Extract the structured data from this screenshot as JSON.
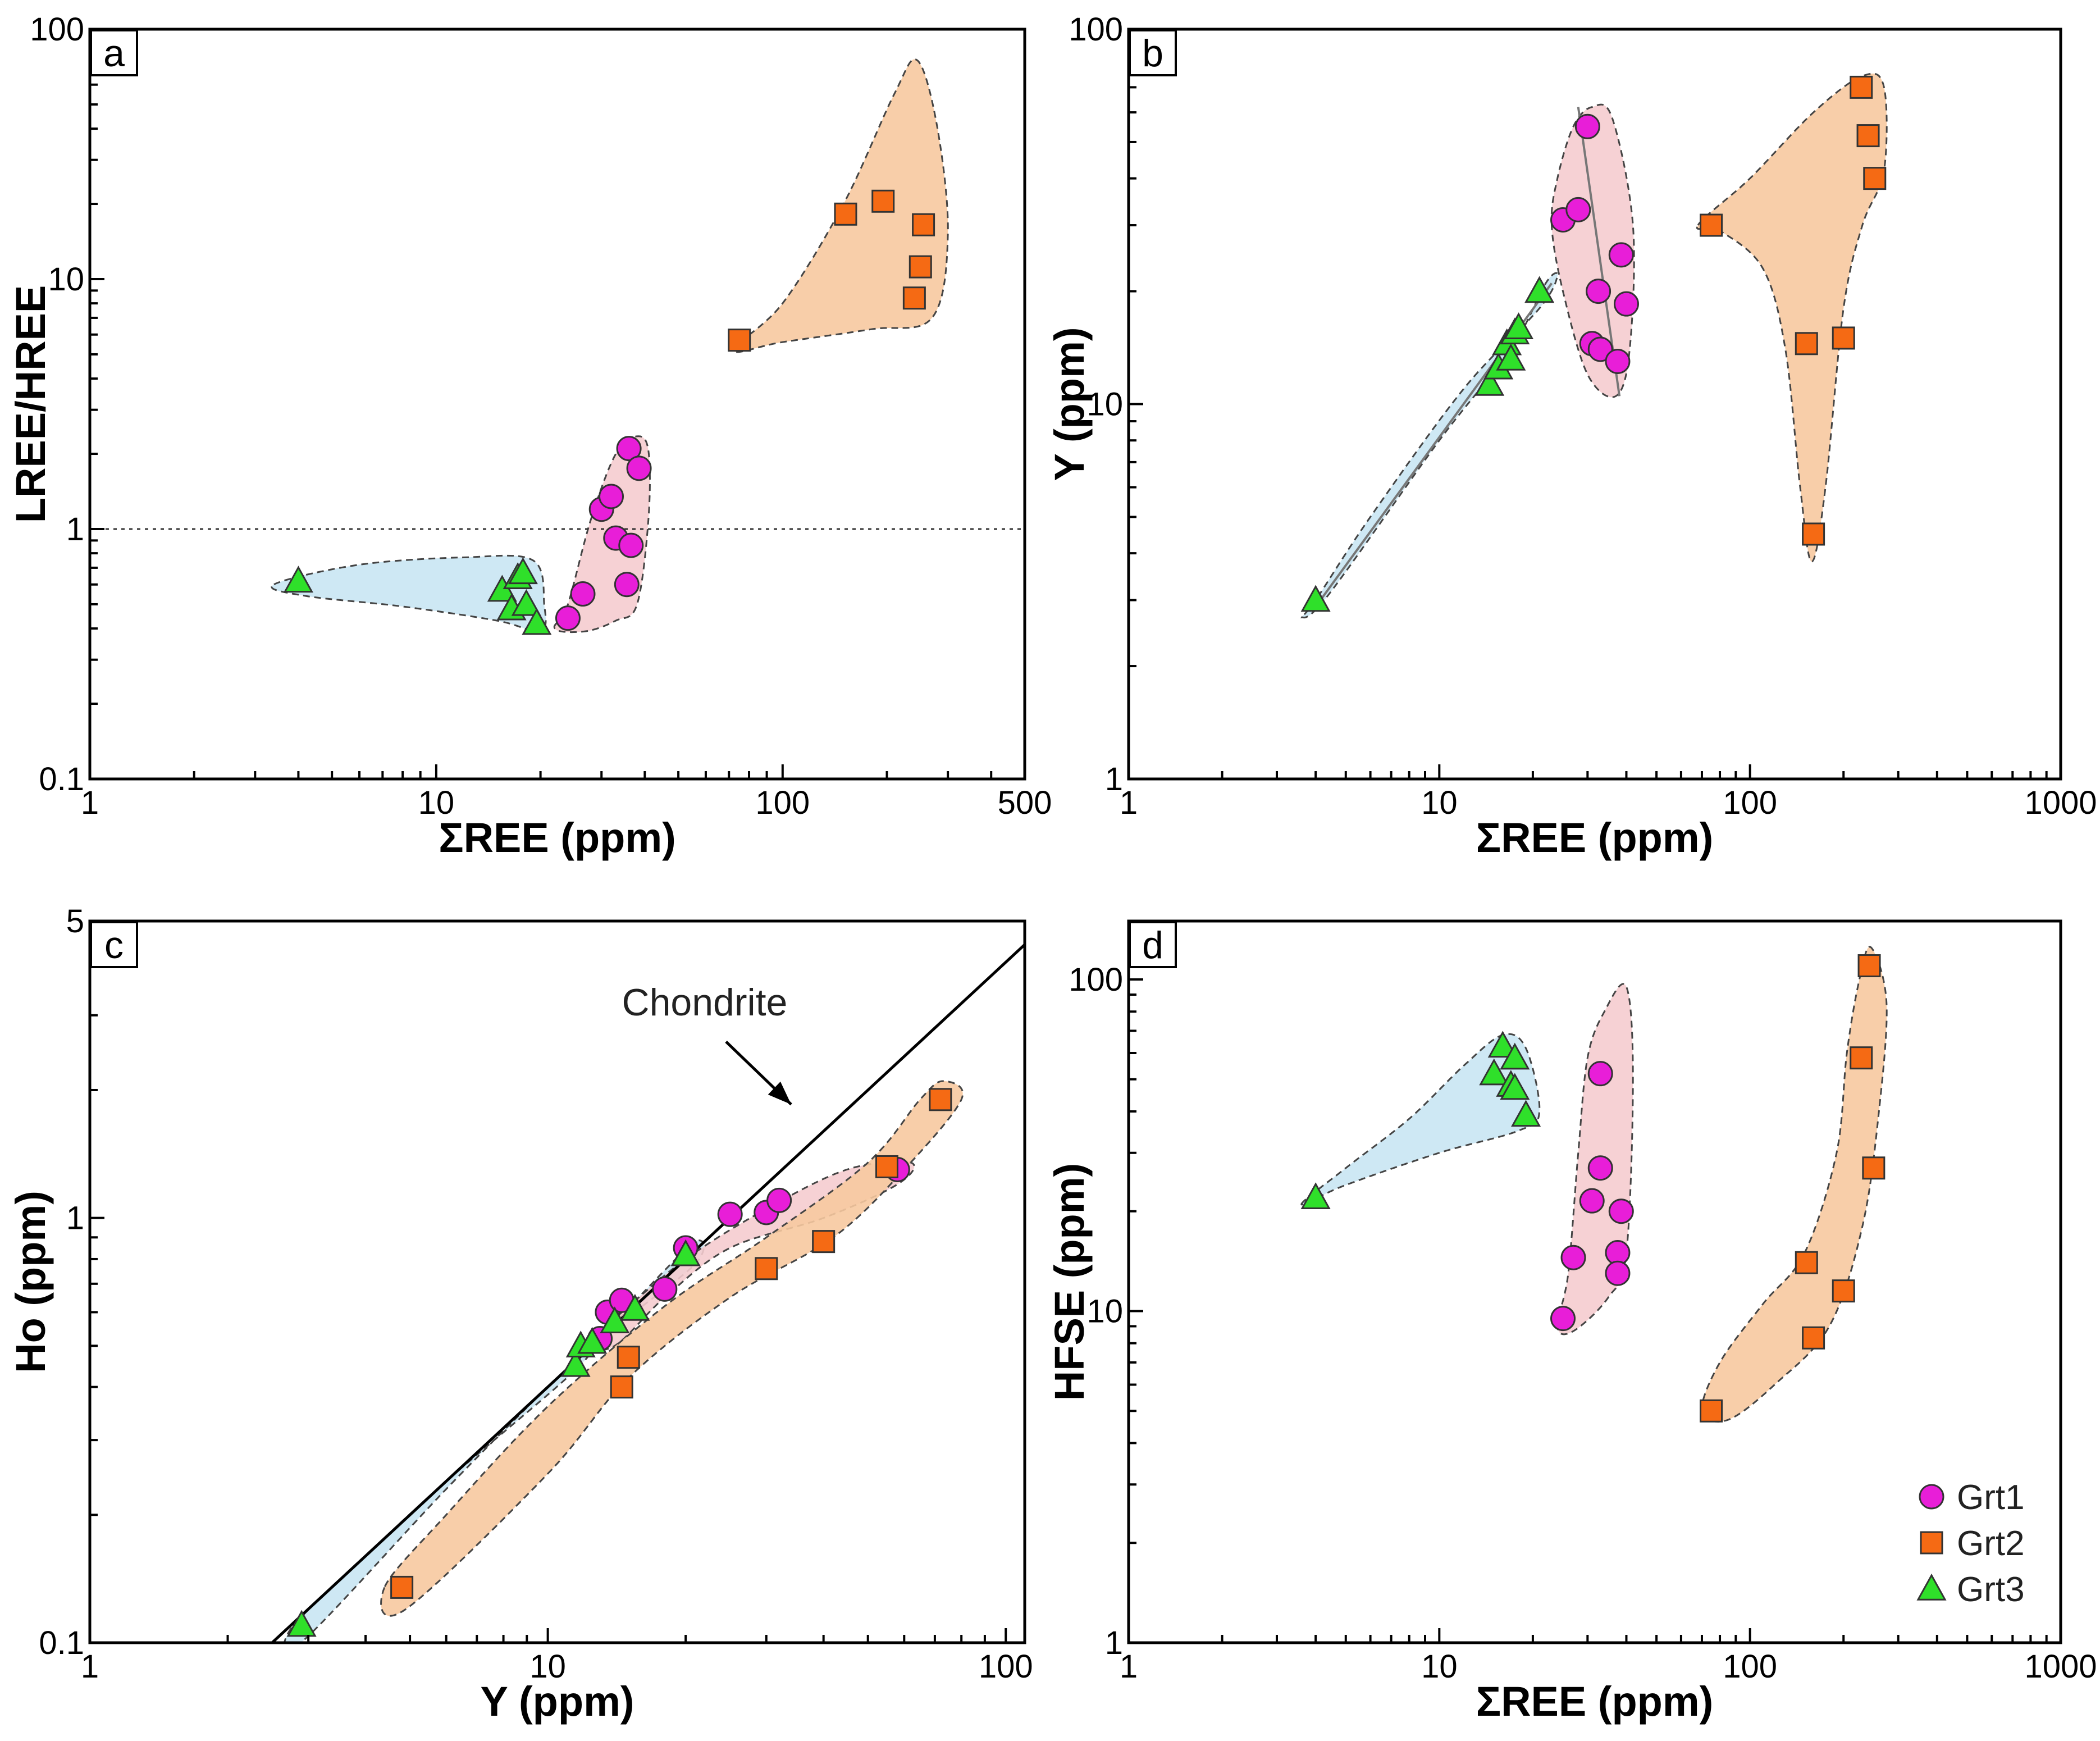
{
  "colors": {
    "Grt1": "#e81ed8",
    "Grt2": "#f56a14",
    "Grt3": "#2fe02a",
    "field_Grt1": "#f5cccf",
    "field_Grt2": "#f7c9a0",
    "field_Grt3": "#c9e6f3"
  },
  "legend": [
    {
      "label": "Grt1",
      "marker": "circle"
    },
    {
      "label": "Grt2",
      "marker": "square"
    },
    {
      "label": "Grt3",
      "marker": "triangle"
    }
  ],
  "chart_data": [
    {
      "panel": "a",
      "type": "scatter",
      "xlabel": "ΣREE (ppm)",
      "ylabel": "LREE/HREE",
      "xscale": "log",
      "yscale": "log",
      "xlim": [
        1,
        500
      ],
      "ylim": [
        0.1,
        100
      ],
      "xticks": [
        1,
        10,
        100,
        500
      ],
      "xtick_labels": [
        "1",
        "10",
        "100",
        "500"
      ],
      "yticks": [
        0.1,
        1,
        10,
        100
      ],
      "ytick_labels": [
        "0.1",
        "1",
        "10",
        "100"
      ],
      "reference_line": {
        "y": 1,
        "style": "dotted"
      },
      "series": [
        {
          "name": "Grt1",
          "x": [
            24,
            26.5,
            30,
            32,
            33,
            35.5,
            36,
            36.5,
            38.5
          ],
          "y": [
            0.44,
            0.55,
            1.2,
            1.35,
            0.92,
            0.6,
            2.1,
            0.86,
            1.75
          ]
        },
        {
          "name": "Grt2",
          "x": [
            75,
            152,
            195,
            240,
            250,
            255
          ],
          "y": [
            5.7,
            18.2,
            20.5,
            8.4,
            11.2,
            16.5
          ]
        },
        {
          "name": "Grt3",
          "x": [
            4,
            15.5,
            16.5,
            17.2,
            17.8,
            18.2,
            19.5
          ],
          "y": [
            0.62,
            0.57,
            0.48,
            0.64,
            0.67,
            0.5,
            0.42
          ]
        }
      ],
      "fields": [
        {
          "group": "Grt3",
          "outline": [
            [
              3.4,
              0.6
            ],
            [
              6,
              0.72
            ],
            [
              12,
              0.77
            ],
            [
              19,
              0.75
            ],
            [
              20.5,
              0.5
            ],
            [
              20,
              0.39
            ],
            [
              15,
              0.43
            ],
            [
              8,
              0.49
            ],
            [
              4.2,
              0.54
            ]
          ]
        },
        {
          "group": "Grt1",
          "outline": [
            [
              22,
              0.4
            ],
            [
              24,
              0.5
            ],
            [
              28,
              1.1
            ],
            [
              33,
              2
            ],
            [
              38,
              2.35
            ],
            [
              41,
              2.05
            ],
            [
              41,
              1.1
            ],
            [
              38,
              0.5
            ],
            [
              33,
              0.43
            ],
            [
              27,
              0.39
            ]
          ]
        },
        {
          "group": "Grt2",
          "outline": [
            [
              72,
              5.2
            ],
            [
              100,
              8
            ],
            [
              150,
              20
            ],
            [
              210,
              55
            ],
            [
              245,
              75
            ],
            [
              280,
              40
            ],
            [
              300,
              15
            ],
            [
              270,
              7
            ],
            [
              180,
              6.3
            ],
            [
              100,
              5.6
            ]
          ]
        }
      ]
    },
    {
      "panel": "b",
      "type": "scatter",
      "xlabel": "ΣREE (ppm)",
      "ylabel": "Y (ppm)",
      "xscale": "log",
      "yscale": "log",
      "xlim": [
        1,
        1000
      ],
      "ylim": [
        1,
        100
      ],
      "xticks": [
        1,
        10,
        100,
        1000
      ],
      "xtick_labels": [
        "1",
        "10",
        "100",
        "1000"
      ],
      "yticks": [
        1,
        10,
        100
      ],
      "ytick_labels": [
        "1",
        "10",
        "100"
      ],
      "trend_lines": [
        {
          "group": "Grt3",
          "x": [
            3.9,
            23
          ],
          "y": [
            2.8,
            21
          ]
        },
        {
          "group": "Grt1",
          "x": [
            28,
            38
          ],
          "y": [
            62,
            10.5
          ]
        }
      ],
      "series": [
        {
          "name": "Grt1",
          "x": [
            30,
            25,
            28,
            32.5,
            38.5,
            31,
            33,
            37.5,
            40
          ],
          "y": [
            55,
            31,
            33,
            20,
            25,
            14.5,
            14,
            13,
            18.5
          ]
        },
        {
          "name": "Grt2",
          "x": [
            228,
            240,
            252,
            75,
            152,
            200,
            160
          ],
          "y": [
            70,
            52,
            40,
            30,
            14.5,
            15,
            4.5
          ]
        },
        {
          "name": "Grt3",
          "x": [
            4,
            14.5,
            15.5,
            16.5,
            17,
            17.5,
            18,
            21
          ],
          "y": [
            3,
            11.3,
            12.5,
            14.5,
            13.2,
            15.5,
            16,
            20
          ]
        }
      ],
      "fields": [
        {
          "group": "Grt3",
          "outline": [
            [
              3.6,
              2.7
            ],
            [
              4.4,
              3.1
            ],
            [
              10,
              8
            ],
            [
              17,
              14
            ],
            [
              22,
              21
            ],
            [
              24,
              22
            ],
            [
              21,
              18
            ],
            [
              12,
              11
            ],
            [
              6,
              5
            ],
            [
              4,
              3
            ]
          ]
        },
        {
          "group": "Grt1",
          "outline": [
            [
              23,
              30
            ],
            [
              24,
              40
            ],
            [
              27,
              55
            ],
            [
              31,
              62
            ],
            [
              36,
              58
            ],
            [
              42,
              30
            ],
            [
              41,
              14
            ],
            [
              37,
              10.5
            ],
            [
              30,
              12
            ],
            [
              25,
              20
            ]
          ]
        },
        {
          "group": "Grt2",
          "outline": [
            [
              68,
              30
            ],
            [
              100,
              40
            ],
            [
              160,
              60
            ],
            [
              230,
              75
            ],
            [
              270,
              70
            ],
            [
              270,
              42
            ],
            [
              230,
              30
            ],
            [
              200,
              18
            ],
            [
              175,
              6
            ],
            [
              158,
              3.8
            ],
            [
              145,
              6
            ],
            [
              130,
              14
            ],
            [
              110,
              23
            ],
            [
              80,
              29
            ]
          ]
        }
      ]
    },
    {
      "panel": "c",
      "type": "scatter",
      "xlabel": "Y (ppm)",
      "ylabel": "Ho (ppm)",
      "xscale": "log",
      "yscale": "log",
      "xlim": [
        1,
        110
      ],
      "ylim": [
        0.1,
        5
      ],
      "xticks": [
        1,
        10,
        100
      ],
      "xtick_labels": [
        "1",
        "10",
        "100"
      ],
      "yticks": [
        0.1,
        1,
        5
      ],
      "ytick_labels": [
        "0.1",
        "1",
        "5"
      ],
      "reference_line": {
        "label": "Chondrite",
        "x": [
          2.5,
          110
        ],
        "y": [
          0.1,
          4.4
        ]
      },
      "annotation": "Chondrite",
      "series": [
        {
          "name": "Grt1",
          "x": [
            13,
            13.5,
            14.5,
            18,
            20,
            25,
            30,
            32,
            58
          ],
          "y": [
            0.52,
            0.6,
            0.64,
            0.68,
            0.85,
            1.02,
            1.03,
            1.1,
            1.3
          ]
        },
        {
          "name": "Grt2",
          "x": [
            4.8,
            14.5,
            15,
            30,
            40,
            55,
            72
          ],
          "y": [
            0.135,
            0.4,
            0.47,
            0.76,
            0.88,
            1.32,
            1.9
          ]
        },
        {
          "name": "Grt3",
          "x": [
            2.9,
            11.5,
            11.8,
            12.5,
            14,
            15.5,
            20
          ],
          "y": [
            0.11,
            0.45,
            0.5,
            0.51,
            0.57,
            0.61,
            0.82
          ]
        }
      ],
      "fields": [
        {
          "group": "Grt3",
          "outline": [
            [
              2.75,
              0.108
            ],
            [
              2.95,
              0.102
            ],
            [
              6,
              0.23
            ],
            [
              10,
              0.4
            ],
            [
              13,
              0.52
            ],
            [
              16,
              0.66
            ],
            [
              21,
              0.88
            ],
            [
              21,
              0.78
            ],
            [
              14,
              0.55
            ],
            [
              11,
              0.42
            ],
            [
              6,
              0.24
            ],
            [
              4,
              0.16
            ]
          ]
        },
        {
          "group": "Grt1",
          "outline": [
            [
              12,
              0.5
            ],
            [
              14,
              0.58
            ],
            [
              20,
              0.8
            ],
            [
              30,
              1.05
            ],
            [
              45,
              1.3
            ],
            [
              62,
              1.35
            ],
            [
              58,
              1.2
            ],
            [
              40,
              1.0
            ],
            [
              25,
              0.85
            ],
            [
              18,
              0.65
            ],
            [
              14,
              0.5
            ]
          ]
        },
        {
          "group": "Grt2",
          "outline": [
            [
              4.4,
              0.135
            ],
            [
              4.9,
              0.12
            ],
            [
              10,
              0.25
            ],
            [
              15,
              0.42
            ],
            [
              25,
              0.65
            ],
            [
              42,
              0.9
            ],
            [
              60,
              1.3
            ],
            [
              80,
              1.9
            ],
            [
              73,
              2.1
            ],
            [
              65,
              1.9
            ],
            [
              50,
              1.35
            ],
            [
              30,
              0.9
            ],
            [
              18,
              0.62
            ],
            [
              10,
              0.36
            ],
            [
              6,
              0.2
            ]
          ]
        }
      ]
    },
    {
      "panel": "d",
      "type": "scatter",
      "xlabel": "ΣREE (ppm)",
      "ylabel": "HFSE (ppm)",
      "xscale": "log",
      "yscale": "log",
      "xlim": [
        1,
        1000
      ],
      "ylim": [
        1,
        150
      ],
      "xticks": [
        1,
        10,
        100,
        1000
      ],
      "xtick_labels": [
        "1",
        "10",
        "100",
        "1000"
      ],
      "yticks": [
        1,
        10,
        100
      ],
      "ytick_labels": [
        "1",
        "10",
        "100"
      ],
      "series": [
        {
          "name": "Grt1",
          "x": [
            33,
            33,
            31,
            38.5,
            27,
            37.5,
            37.5,
            25
          ],
          "y": [
            52,
            27,
            21.5,
            20,
            14.5,
            15,
            13,
            9.5
          ]
        },
        {
          "name": "Grt2",
          "x": [
            242,
            228,
            250,
            152,
            200,
            160,
            75
          ],
          "y": [
            110,
            58,
            27,
            14,
            11.5,
            8.3,
            5
          ]
        },
        {
          "name": "Grt3",
          "x": [
            4,
            15,
            16,
            17,
            17.5,
            17.5,
            19
          ],
          "y": [
            22,
            52,
            63,
            48,
            47,
            58,
            39
          ]
        }
      ],
      "fields": [
        {
          "group": "Grt3",
          "outline": [
            [
              3.6,
              21
            ],
            [
              5,
              27
            ],
            [
              8,
              38
            ],
            [
              12,
              55
            ],
            [
              16,
              68
            ],
            [
              19,
              62
            ],
            [
              21,
              40
            ],
            [
              18,
              35
            ],
            [
              10,
              30
            ],
            [
              5,
              24
            ]
          ]
        },
        {
          "group": "Grt1",
          "outline": [
            [
              24,
              9
            ],
            [
              26,
              13
            ],
            [
              28,
              30
            ],
            [
              30,
              58
            ],
            [
              34,
              80
            ],
            [
              40,
              95
            ],
            [
              42,
              50
            ],
            [
              40,
              15
            ],
            [
              35,
              11
            ],
            [
              27,
              8.7
            ]
          ]
        },
        {
          "group": "Grt2",
          "outline": [
            [
              70,
              5
            ],
            [
              80,
              7
            ],
            [
              110,
              10.5
            ],
            [
              150,
              15
            ],
            [
              190,
              30
            ],
            [
              205,
              60
            ],
            [
              225,
              100
            ],
            [
              245,
              125
            ],
            [
              275,
              85
            ],
            [
              260,
              40
            ],
            [
              230,
              18
            ],
            [
              180,
              9
            ],
            [
              120,
              6
            ],
            [
              85,
              4.7
            ]
          ]
        }
      ]
    }
  ]
}
